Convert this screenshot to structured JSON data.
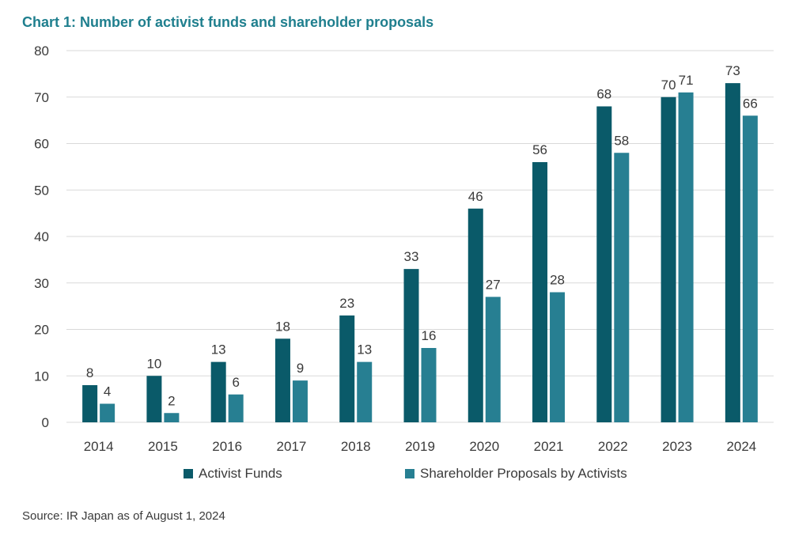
{
  "title": "Chart 1: Number of activist funds and shareholder proposals",
  "source": "Source: IR Japan as of August 1, 2024",
  "colors": {
    "series1": "#0a5a69",
    "series2": "#277f92",
    "grid": "#d9d9d9",
    "title": "#1f7f8e"
  },
  "chart_data": {
    "type": "bar",
    "title": "Chart 1: Number of activist funds and shareholder proposals",
    "xlabel": "",
    "ylabel": "",
    "ylim": [
      0,
      80
    ],
    "yticks": [
      0,
      10,
      20,
      30,
      40,
      50,
      60,
      70,
      80
    ],
    "grid": true,
    "legend_position": "bottom",
    "categories": [
      "2014",
      "2015",
      "2016",
      "2017",
      "2018",
      "2019",
      "2020",
      "2021",
      "2022",
      "2023",
      "2024"
    ],
    "series": [
      {
        "name": "Activist Funds",
        "values": [
          8,
          10,
          13,
          18,
          23,
          33,
          46,
          56,
          68,
          70,
          73
        ]
      },
      {
        "name": "Shareholder Proposals by Activists",
        "values": [
          4,
          2,
          6,
          9,
          13,
          16,
          27,
          28,
          58,
          71,
          66
        ]
      }
    ]
  }
}
